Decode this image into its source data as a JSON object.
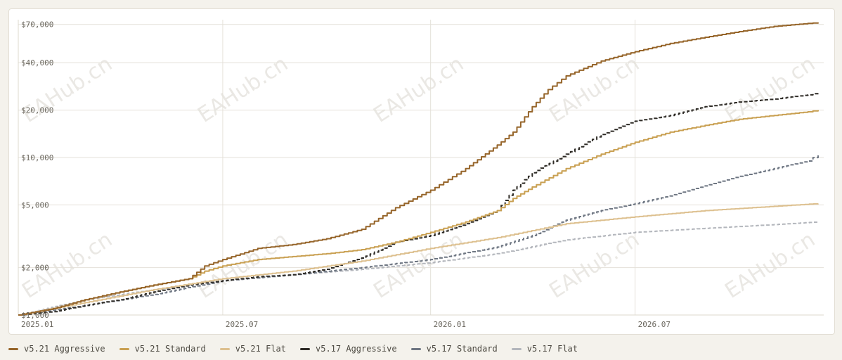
{
  "chart_data": {
    "type": "line",
    "y_scale": "log",
    "ylim": [
      1000,
      75000
    ],
    "xlim": [
      "2025-01-01",
      "2026-12-15"
    ],
    "grid": true,
    "legend_position": "bottom",
    "y_ticks": [
      {
        "value": 1000,
        "label": "$1,000"
      },
      {
        "value": 2000,
        "label": "$2,000"
      },
      {
        "value": 5000,
        "label": "$5,000"
      },
      {
        "value": 10000,
        "label": "$10,000"
      },
      {
        "value": 20000,
        "label": "$20,000"
      },
      {
        "value": 40000,
        "label": "$40,000"
      },
      {
        "value": 70000,
        "label": "$70,000"
      }
    ],
    "x_ticks": [
      {
        "value": "2025-01-01",
        "label": "2025.01"
      },
      {
        "value": "2025-07-01",
        "label": "2025.07"
      },
      {
        "value": "2026-01-01",
        "label": "2026.01"
      },
      {
        "value": "2026-07-01",
        "label": "2026.07"
      }
    ],
    "watermark": "EAHub.cn",
    "series": [
      {
        "name": "v5.21 Aggressive",
        "color": "#96652a",
        "dashed": false,
        "x": [
          "2025-01-01",
          "2025-02-01",
          "2025-03-01",
          "2025-04-01",
          "2025-05-01",
          "2025-06-01",
          "2025-06-15",
          "2025-07-01",
          "2025-08-01",
          "2025-09-01",
          "2025-10-01",
          "2025-11-01",
          "2025-12-01",
          "2026-01-01",
          "2026-02-01",
          "2026-03-01",
          "2026-03-15",
          "2026-04-01",
          "2026-04-15",
          "2026-05-01",
          "2026-06-01",
          "2026-07-01",
          "2026-08-01",
          "2026-09-01",
          "2026-10-01",
          "2026-11-01",
          "2026-12-01",
          "2026-12-10"
        ],
        "values": [
          1000,
          1100,
          1250,
          1400,
          1550,
          1700,
          2050,
          2250,
          2650,
          2800,
          3050,
          3500,
          4800,
          6200,
          8500,
          12000,
          14500,
          21000,
          27000,
          33000,
          41000,
          47000,
          53000,
          58000,
          63000,
          68000,
          71000,
          72000
        ]
      },
      {
        "name": "v5.21 Standard",
        "color": "#c9a052",
        "dashed": false,
        "x": [
          "2025-01-01",
          "2025-02-01",
          "2025-03-01",
          "2025-04-01",
          "2025-05-01",
          "2025-06-01",
          "2025-06-15",
          "2025-07-01",
          "2025-08-01",
          "2025-09-01",
          "2025-10-01",
          "2025-11-01",
          "2025-12-01",
          "2026-01-01",
          "2026-02-01",
          "2026-03-01",
          "2026-03-15",
          "2026-04-01",
          "2026-05-01",
          "2026-06-01",
          "2026-07-01",
          "2026-08-01",
          "2026-09-01",
          "2026-10-01",
          "2026-11-01",
          "2026-12-01",
          "2026-12-10"
        ],
        "values": [
          1000,
          1100,
          1250,
          1400,
          1550,
          1700,
          1900,
          2050,
          2250,
          2350,
          2450,
          2600,
          2900,
          3350,
          3900,
          4600,
          5500,
          6500,
          8500,
          10500,
          12500,
          14500,
          16000,
          17500,
          18500,
          19500,
          20000
        ]
      },
      {
        "name": "v5.21 Flat",
        "color": "#ddc08f",
        "dashed": false,
        "x": [
          "2025-01-01",
          "2025-03-01",
          "2025-05-01",
          "2025-07-01",
          "2025-09-01",
          "2025-11-01",
          "2026-01-01",
          "2026-03-01",
          "2026-05-01",
          "2026-07-01",
          "2026-09-01",
          "2026-11-01",
          "2026-12-10"
        ],
        "values": [
          1000,
          1200,
          1450,
          1700,
          1900,
          2200,
          2650,
          3100,
          3800,
          4200,
          4600,
          4900,
          5100
        ]
      },
      {
        "name": "v5.17 Aggressive",
        "color": "#2e2b26",
        "dashed": true,
        "x": [
          "2025-01-01",
          "2025-02-01",
          "2025-03-01",
          "2025-04-01",
          "2025-05-01",
          "2025-06-01",
          "2025-07-01",
          "2025-08-01",
          "2025-09-01",
          "2025-10-01",
          "2025-11-01",
          "2025-12-01",
          "2026-01-01",
          "2026-02-01",
          "2026-03-01",
          "2026-03-15",
          "2026-04-01",
          "2026-05-01",
          "2026-06-01",
          "2026-07-01",
          "2026-08-01",
          "2026-09-01",
          "2026-10-01",
          "2026-11-01",
          "2026-12-01",
          "2026-12-10"
        ],
        "values": [
          1000,
          1050,
          1150,
          1250,
          1400,
          1550,
          1650,
          1750,
          1800,
          1950,
          2300,
          2900,
          3200,
          3800,
          4600,
          6200,
          8000,
          10500,
          14000,
          17000,
          18500,
          21000,
          22500,
          23500,
          25000,
          25800
        ]
      },
      {
        "name": "v5.17 Standard",
        "color": "#6e7682",
        "dashed": true,
        "x": [
          "2025-01-01",
          "2025-03-01",
          "2025-05-01",
          "2025-07-01",
          "2025-09-01",
          "2025-11-01",
          "2026-01-01",
          "2026-03-01",
          "2026-04-01",
          "2026-05-01",
          "2026-06-01",
          "2026-07-01",
          "2026-08-01",
          "2026-09-01",
          "2026-10-01",
          "2026-11-01",
          "2026-12-01",
          "2026-12-10"
        ],
        "values": [
          1000,
          1150,
          1350,
          1650,
          1800,
          2000,
          2250,
          2700,
          3200,
          4000,
          4600,
          5100,
          5700,
          6600,
          7600,
          8500,
          9500,
          10500
        ]
      },
      {
        "name": "v5.17 Flat",
        "color": "#b3b6bc",
        "dashed": true,
        "x": [
          "2025-01-01",
          "2025-03-01",
          "2025-05-01",
          "2025-07-01",
          "2025-09-01",
          "2025-11-01",
          "2026-01-01",
          "2026-03-01",
          "2026-05-01",
          "2026-07-01",
          "2026-09-01",
          "2026-11-01",
          "2026-12-10"
        ],
        "values": [
          1000,
          1250,
          1450,
          1650,
          1800,
          1950,
          2150,
          2450,
          3000,
          3350,
          3550,
          3750,
          3900
        ]
      }
    ]
  }
}
